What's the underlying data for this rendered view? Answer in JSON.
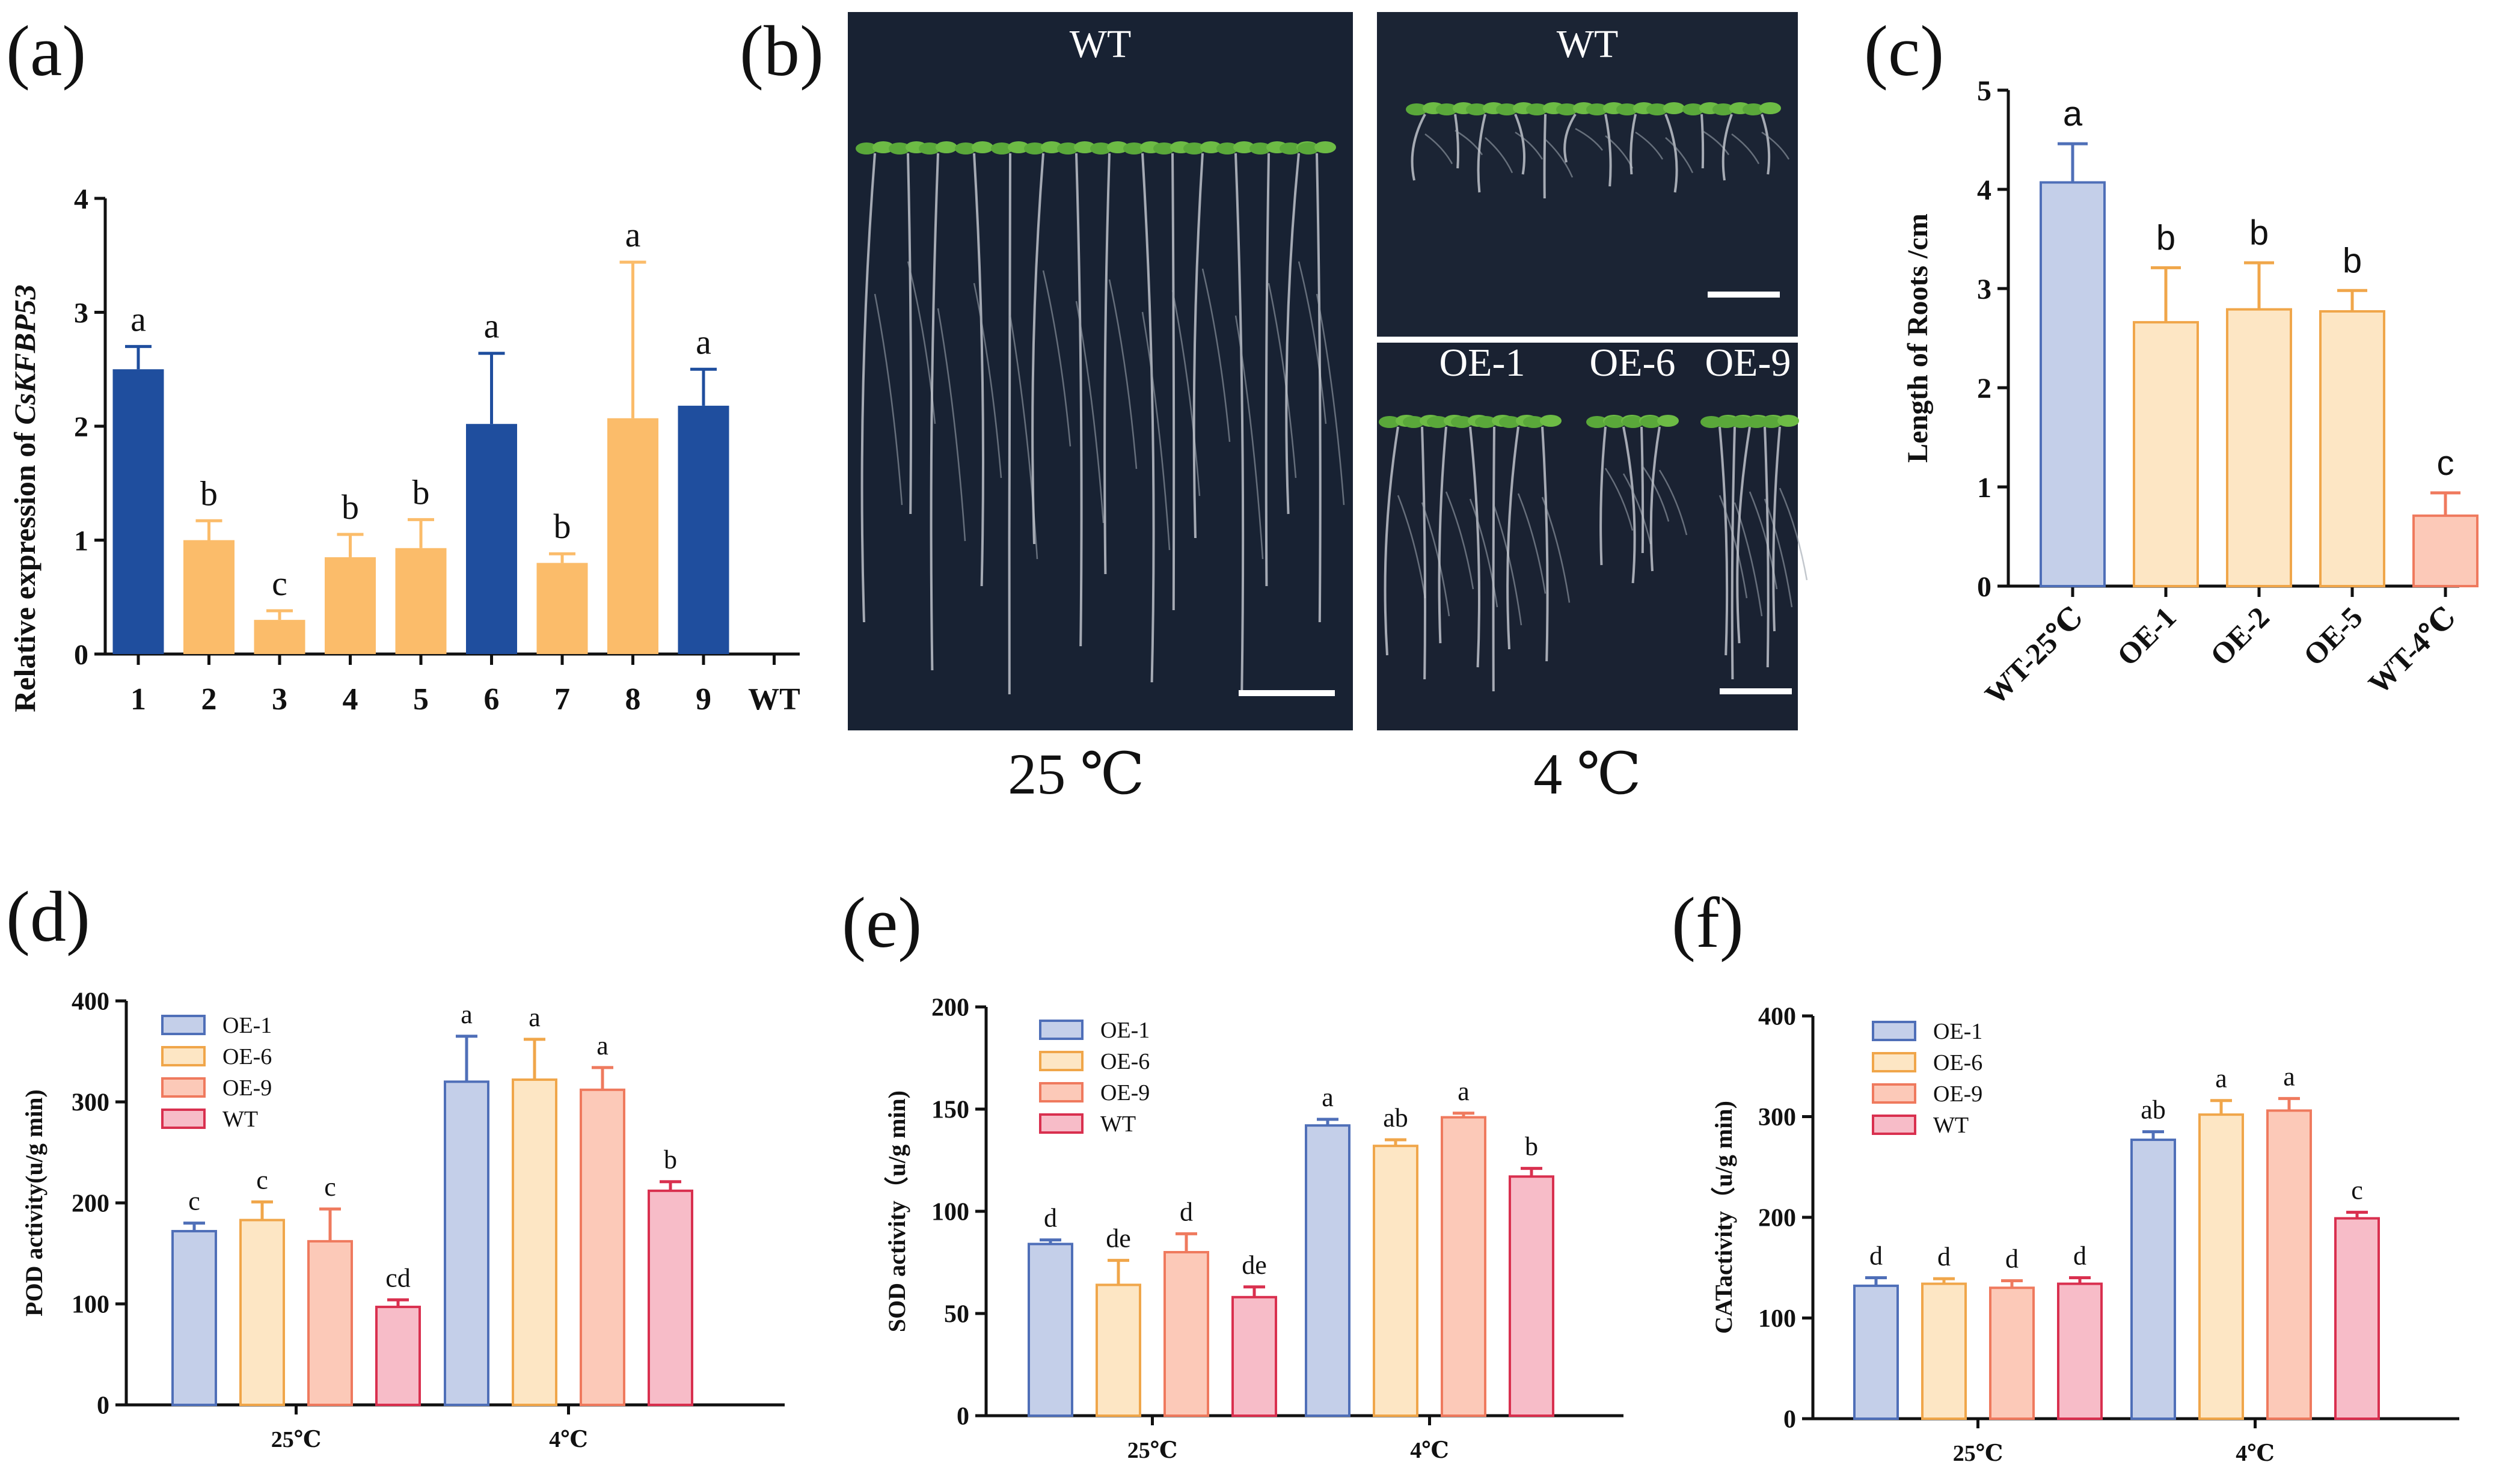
{
  "panel_labels": [
    "(a)",
    "(b)",
    "(c)",
    "(d)",
    "(e)",
    "(f)"
  ],
  "photo": {
    "wt_label": "WT",
    "oe_labels": [
      "OE-1",
      "OE-6",
      "OE-9"
    ],
    "temp_left": "25 ℃",
    "temp_right": "4 ℃"
  },
  "colors": {
    "blue_fill": "#1f4e9e",
    "orange_fill": "#fbbc6a",
    "light_blue": "#c4cfe9",
    "light_blue_edge": "#4f6fb8",
    "light_orange": "#fde6c4",
    "light_orange_edge": "#f0a64a",
    "light_salmon": "#fcc9b8",
    "salmon_edge": "#ef7a5e",
    "pink": "#f7bcc8",
    "pink_edge": "#d9304f",
    "photo_bg": "#182233"
  },
  "chart_data": [
    {
      "id": "a",
      "type": "bar",
      "title": "",
      "xlabel": "",
      "ylabel": "Relative expression of CsKFBP53",
      "ylabel_plain": "Relative expression of ",
      "ylabel_italic": "CsKFBP53",
      "categories": [
        "1",
        "2",
        "3",
        "4",
        "5",
        "6",
        "7",
        "8",
        "9",
        "WT"
      ],
      "values": [
        2.5,
        1.0,
        0.3,
        0.85,
        0.93,
        2.02,
        0.8,
        2.07,
        2.18,
        0
      ],
      "errors": [
        0.2,
        0.17,
        0.08,
        0.2,
        0.25,
        0.62,
        0.08,
        1.37,
        0.32,
        0
      ],
      "significance": [
        "a",
        "b",
        "c",
        "b",
        "b",
        "a",
        "b",
        "a",
        "a",
        ""
      ],
      "bar_colors": [
        "blue",
        "orange",
        "orange",
        "orange",
        "orange",
        "blue",
        "orange",
        "orange",
        "blue",
        "none"
      ],
      "ylim": [
        0,
        4
      ],
      "yticks": [
        "0",
        "1",
        "2",
        "3",
        "4"
      ]
    },
    {
      "id": "c",
      "type": "bar",
      "title": "",
      "xlabel": "",
      "ylabel": "Length of Roots /cm",
      "categories": [
        "WT-25℃",
        "OE-1",
        "OE-2",
        "OE-5",
        "WT-4℃"
      ],
      "values": [
        4.07,
        2.66,
        2.79,
        2.77,
        0.71
      ],
      "errors": [
        0.39,
        0.55,
        0.47,
        0.21,
        0.23
      ],
      "significance": [
        "a",
        "b",
        "b",
        "b",
        "c"
      ],
      "bar_colors": [
        "lightblue",
        "lightorange",
        "lightorange",
        "lightorange",
        "salmon"
      ],
      "ylim": [
        0,
        5
      ],
      "yticks": [
        "0",
        "1",
        "2",
        "3",
        "4",
        "5"
      ]
    },
    {
      "id": "d",
      "type": "bar",
      "title": "",
      "xlabel": "",
      "ylabel": "POD activity(u/g min)",
      "categories": [
        "25℃",
        "4℃"
      ],
      "series": [
        {
          "name": "OE-1",
          "values": [
            172,
            320
          ],
          "errors": [
            8,
            45
          ],
          "significance": [
            "c",
            "a"
          ]
        },
        {
          "name": "OE-6",
          "values": [
            183,
            322
          ],
          "errors": [
            18,
            40
          ],
          "significance": [
            "c",
            "a"
          ]
        },
        {
          "name": "OE-9",
          "values": [
            162,
            312
          ],
          "errors": [
            32,
            22
          ],
          "significance": [
            "c",
            "a"
          ]
        },
        {
          "name": "WT",
          "values": [
            97,
            212
          ],
          "errors": [
            7,
            9
          ],
          "significance": [
            "cd",
            "b"
          ]
        }
      ],
      "ylim": [
        0,
        400
      ],
      "yticks": [
        "0",
        "100",
        "200",
        "300",
        "400"
      ],
      "legend": "top-left"
    },
    {
      "id": "e",
      "type": "bar",
      "title": "",
      "xlabel": "",
      "ylabel": "SOD activity（u/g min)",
      "categories": [
        "25℃",
        "4℃"
      ],
      "series": [
        {
          "name": "OE-1",
          "values": [
            84,
            142
          ],
          "errors": [
            2,
            3
          ],
          "significance": [
            "d",
            "a"
          ]
        },
        {
          "name": "OE-6",
          "values": [
            64,
            132
          ],
          "errors": [
            12,
            3
          ],
          "significance": [
            "de",
            "ab"
          ]
        },
        {
          "name": "OE-9",
          "values": [
            80,
            146
          ],
          "errors": [
            9,
            2
          ],
          "significance": [
            "d",
            "a"
          ]
        },
        {
          "name": "WT",
          "values": [
            58,
            117
          ],
          "errors": [
            5,
            4
          ],
          "significance": [
            "de",
            "b"
          ]
        }
      ],
      "ylim": [
        0,
        200
      ],
      "yticks": [
        "0",
        "50",
        "100",
        "150",
        "200"
      ],
      "legend": "top-left"
    },
    {
      "id": "f",
      "type": "bar",
      "title": "",
      "xlabel": "",
      "ylabel": "CATactivity（u/g min)",
      "categories": [
        "25℃",
        "4℃"
      ],
      "series": [
        {
          "name": "OE-1",
          "values": [
            132,
            277
          ],
          "errors": [
            8,
            8
          ],
          "significance": [
            "d",
            "ab"
          ]
        },
        {
          "name": "OE-6",
          "values": [
            134,
            302
          ],
          "errors": [
            5,
            14
          ],
          "significance": [
            "d",
            "a"
          ]
        },
        {
          "name": "OE-9",
          "values": [
            130,
            306
          ],
          "errors": [
            7,
            12
          ],
          "significance": [
            "d",
            "a"
          ]
        },
        {
          "name": "WT",
          "values": [
            134,
            199
          ],
          "errors": [
            6,
            6
          ],
          "significance": [
            "d",
            "c"
          ]
        }
      ],
      "ylim": [
        0,
        400
      ],
      "yticks": [
        "0",
        "100",
        "200",
        "300",
        "400"
      ],
      "legend": "top-left"
    }
  ]
}
